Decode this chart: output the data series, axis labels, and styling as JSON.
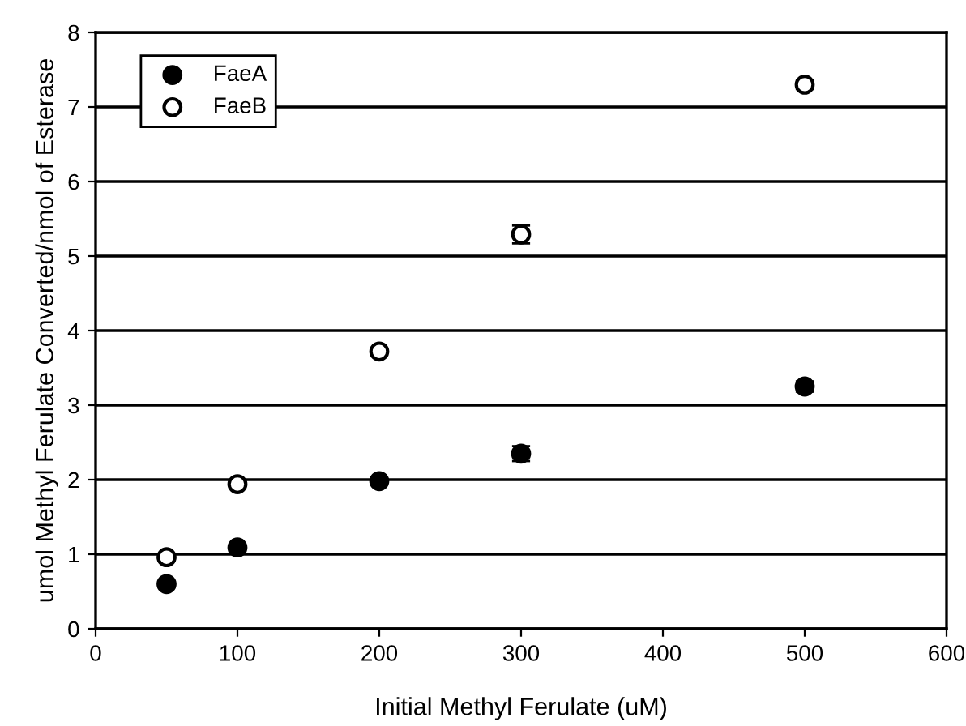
{
  "chart_data": {
    "type": "scatter",
    "xlabel": "Initial Methyl Ferulate (uM)",
    "ylabel": "umol Methyl Ferulate Converted/nmol of Esterase",
    "x": [
      50,
      100,
      200,
      300,
      500
    ],
    "series": [
      {
        "name": "FaeA",
        "color": "#000000",
        "marker": "circle",
        "values": [
          0.6,
          1.09,
          1.98,
          2.35,
          3.25
        ],
        "errors": [
          null,
          null,
          null,
          0.1,
          0.07
        ]
      },
      {
        "name": "FaeB",
        "color": "#ffffff",
        "marker": "circle",
        "values": [
          0.96,
          1.94,
          3.72,
          5.29,
          7.3
        ],
        "errors": [
          null,
          null,
          null,
          0.12,
          0.06
        ]
      }
    ],
    "xlim": [
      0,
      600
    ],
    "xticks": [
      0,
      100,
      200,
      300,
      400,
      500,
      600
    ],
    "ylim": [
      0,
      8
    ],
    "yticks": [
      0,
      1,
      2,
      3,
      4,
      5,
      6,
      7,
      8
    ],
    "grid": "y",
    "legend": "top left"
  }
}
